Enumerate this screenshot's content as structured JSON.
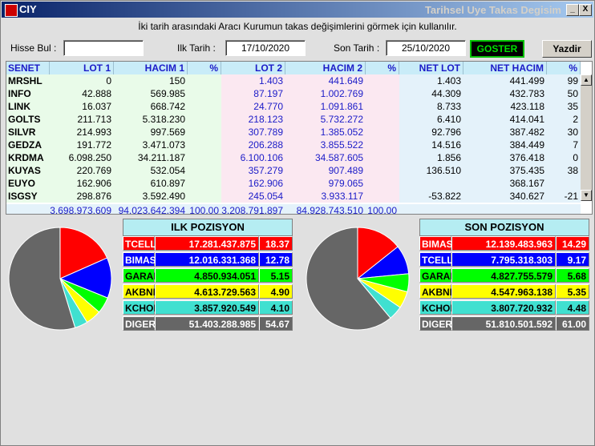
{
  "window": {
    "title_left": "CIY",
    "title_right": "Tarihsel Uye Takas Degisim",
    "min_label": "_",
    "close_label": "X"
  },
  "instruction": "İki tarih arasındaki  Aracı Kurumun takas değişimlerini görmek için kullanılır.",
  "controls": {
    "hisse_label": "Hisse Bul :",
    "hisse_value": "",
    "ilk_label": "Ilk Tarih :",
    "ilk_value": "17/10/2020",
    "son_label": "Son Tarih :",
    "son_value": "25/10/2020",
    "goster": "GOSTER",
    "yazdir": "Yazdir"
  },
  "table": {
    "headers": [
      "SENET",
      "LOT 1",
      "HACIM 1",
      "%",
      "LOT 2",
      "HACIM 2",
      "%",
      "NET LOT",
      "NET HACIM",
      "%"
    ],
    "rows": [
      [
        "MRSHL",
        "0",
        "150",
        "",
        "1.403",
        "441.649",
        "",
        "1.403",
        "441.499",
        "99"
      ],
      [
        "INFO",
        "42.888",
        "569.985",
        "",
        "87.197",
        "1.002.769",
        "",
        "44.309",
        "432.783",
        "50"
      ],
      [
        "LINK",
        "16.037",
        "668.742",
        "",
        "24.770",
        "1.091.861",
        "",
        "8.733",
        "423.118",
        "35"
      ],
      [
        "GOLTS",
        "211.713",
        "5.318.230",
        "",
        "218.123",
        "5.732.272",
        "",
        "6.410",
        "414.041",
        "2"
      ],
      [
        "SILVR",
        "214.993",
        "997.569",
        "",
        "307.789",
        "1.385.052",
        "",
        "92.796",
        "387.482",
        "30"
      ],
      [
        "GEDZA",
        "191.772",
        "3.471.073",
        "",
        "206.288",
        "3.855.522",
        "",
        "14.516",
        "384.449",
        "7"
      ],
      [
        "KRDMA",
        "6.098.250",
        "34.211.187",
        "",
        "6.100.106",
        "34.587.605",
        "",
        "1.856",
        "376.418",
        "0"
      ],
      [
        "KUYAS",
        "220.769",
        "532.054",
        "",
        "357.279",
        "907.489",
        "",
        "136.510",
        "375.435",
        "38"
      ],
      [
        "EUYO",
        "162.906",
        "610.897",
        "",
        "162.906",
        "979.065",
        "",
        "",
        "368.167",
        ""
      ],
      [
        "ISGSY",
        "298.876",
        "3.592.490",
        "",
        "245.054",
        "3.933.117",
        "",
        "-53.822",
        "340.627",
        "-21"
      ]
    ],
    "totals": [
      "",
      "3.698.973.609",
      "94.023.642.394",
      "100,00",
      "3.208.791.897",
      "84.928.743.510",
      "100,00",
      "",
      "",
      ""
    ],
    "scroll_up": "▲",
    "scroll_down": "▼"
  },
  "ilk_pozisyon": {
    "title": "ILK POZISYON",
    "rows": [
      {
        "name": "TCELL",
        "value": "17.281.437.875",
        "pct": "18.37",
        "bg": "#ff0000",
        "fg": "#ffffff"
      },
      {
        "name": "BIMAS",
        "value": "12.016.331.368",
        "pct": "12.78",
        "bg": "#0000ff",
        "fg": "#ffffff"
      },
      {
        "name": "GARAN",
        "value": "4.850.934.051",
        "pct": "5.15",
        "bg": "#00ff00",
        "fg": "#000000"
      },
      {
        "name": "AKBNK",
        "value": "4.613.729.563",
        "pct": "4.90",
        "bg": "#ffff00",
        "fg": "#000000"
      },
      {
        "name": "KCHOL",
        "value": "3.857.920.549",
        "pct": "4.10",
        "bg": "#40e0d0",
        "fg": "#000000"
      },
      {
        "name": "DIGER",
        "value": "51.403.288.985",
        "pct": "54.67",
        "bg": "#666666",
        "fg": "#ffffff"
      }
    ]
  },
  "son_pozisyon": {
    "title": "SON POZISYON",
    "rows": [
      {
        "name": "BIMAS",
        "value": "12.139.483.963",
        "pct": "14.29",
        "bg": "#ff0000",
        "fg": "#ffffff"
      },
      {
        "name": "TCELL",
        "value": "7.795.318.303",
        "pct": "9.17",
        "bg": "#0000ff",
        "fg": "#ffffff"
      },
      {
        "name": "GARAN",
        "value": "4.827.755.579",
        "pct": "5.68",
        "bg": "#00ff00",
        "fg": "#000000"
      },
      {
        "name": "AKBNK",
        "value": "4.547.963.138",
        "pct": "5.35",
        "bg": "#ffff00",
        "fg": "#000000"
      },
      {
        "name": "KCHOL",
        "value": "3.807.720.932",
        "pct": "4.48",
        "bg": "#40e0d0",
        "fg": "#000000"
      },
      {
        "name": "DIGER",
        "value": "51.810.501.592",
        "pct": "61.00",
        "bg": "#666666",
        "fg": "#ffffff"
      }
    ]
  }
}
